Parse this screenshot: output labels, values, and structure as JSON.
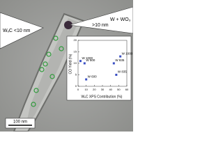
{
  "annotations": {
    "large": ">10 nm",
    "large_phase": "W + WO₃",
    "small": "WₓC <10 nm",
    "scale_bar": "100 nm"
  },
  "chart_data": {
    "type": "scatter",
    "x_label": "WₓC XPS Contribution (%)",
    "y_label": "CO Yield (%)",
    "x": [
      3,
      8,
      10,
      44,
      47,
      52
    ],
    "values": [
      11,
      10,
      3,
      10,
      5,
      13
    ],
    "point_labels": [
      "W 1000",
      "W 500",
      "W 600",
      "W 835",
      "W 835",
      "W 1000"
    ],
    "color": "#3a4fc4",
    "xlim": [
      0,
      60
    ],
    "ylim": [
      0,
      20
    ],
    "xticks": [
      0,
      10,
      20,
      30,
      40,
      50,
      60
    ],
    "yticks": [
      0,
      5,
      10,
      15,
      20
    ]
  }
}
